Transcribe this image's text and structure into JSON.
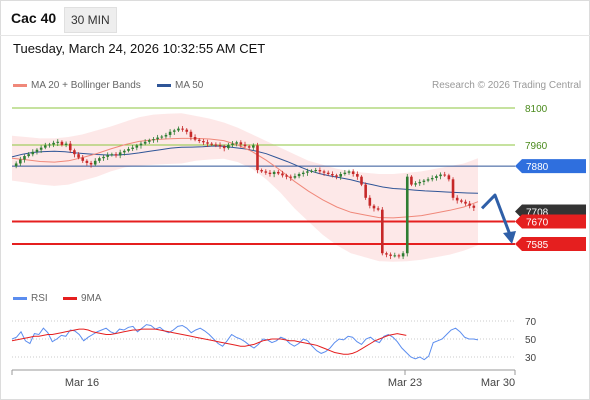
{
  "header": {
    "instrument": "Cac 40",
    "timeframe": "30 MIN",
    "datetime": "Tuesday, March 24, 2026 10:32:55 AM CET"
  },
  "legend": {
    "ma20_label": "MA 20 + Bollinger Bands",
    "ma50_label": "MA 50",
    "credit": "Research © 2026 Trading Central",
    "rsi_label": "RSI",
    "rsi_ma_label": "9MA"
  },
  "colors": {
    "ma20": "#f0887a",
    "ma50": "#2f5597",
    "bollinger_fill": "#fde4e4",
    "resistance_line": "#8dc63f",
    "pivot_line": "#2f5597",
    "support_line": "#e51f1f",
    "candle_up": "#2e7d32",
    "candle_down": "#c62828",
    "rsi_line": "#5b8def",
    "rsi_ma_line": "#e51f1f",
    "scenario_arrow": "#2f5fa8",
    "last_price_label": "#333333"
  },
  "chart_data": [
    {
      "type": "candlestick",
      "x_axis_labels": [
        "Mar 16",
        "Mar 23",
        "Mar 30"
      ],
      "ylim": [
        7520,
        8150
      ],
      "levels": [
        {
          "value": 8100,
          "label": "8100",
          "kind": "resistance"
        },
        {
          "value": 7960,
          "label": "7960",
          "kind": "resistance"
        },
        {
          "value": 7880,
          "label": "7880",
          "kind": "pivot"
        },
        {
          "value": 7708,
          "label": "7708",
          "kind": "last"
        },
        {
          "value": 7670,
          "label": "7670",
          "kind": "support"
        },
        {
          "value": 7585,
          "label": "7585",
          "kind": "support"
        }
      ],
      "price_path": [
        7880,
        7890,
        7905,
        7918,
        7925,
        7934,
        7942,
        7950,
        7958,
        7962,
        7968,
        7972,
        7960,
        7965,
        7940,
        7925,
        7912,
        7900,
        7892,
        7886,
        7900,
        7910,
        7915,
        7922,
        7925,
        7920,
        7932,
        7938,
        7945,
        7950,
        7958,
        7965,
        7972,
        7978,
        7982,
        7988,
        7992,
        7998,
        8010,
        8015,
        8022,
        8018,
        8010,
        7990,
        7980,
        7975,
        7970,
        7965,
        7962,
        7960,
        7955,
        7948,
        7960,
        7965,
        7970,
        7962,
        7955,
        7950,
        7958,
        7865,
        7860,
        7855,
        7850,
        7858,
        7852,
        7845,
        7840,
        7836,
        7842,
        7850,
        7855,
        7860,
        7862,
        7865,
        7860,
        7855,
        7850,
        7845,
        7840,
        7850,
        7855,
        7860,
        7850,
        7840,
        7810,
        7760,
        7730,
        7720,
        7715,
        7550,
        7545,
        7540,
        7542,
        7538,
        7550,
        7840,
        7810,
        7815,
        7820,
        7825,
        7830,
        7835,
        7842,
        7848,
        7845,
        7830,
        7760,
        7750,
        7745,
        7738,
        7730,
        7722
      ],
      "ma50": [
        7915,
        7925,
        7932,
        7935,
        7936,
        7934,
        7930,
        7927,
        7924,
        7922,
        7922,
        7925,
        7930,
        7936,
        7942,
        7948,
        7951,
        7952,
        7953,
        7956,
        7955,
        7950,
        7945,
        7937,
        7927,
        7912,
        7897,
        7880,
        7864,
        7852,
        7843,
        7836,
        7828,
        7818,
        7810,
        7801,
        7795,
        7793,
        7789,
        7786,
        7784,
        7782,
        7780,
        7778,
        7777
      ],
      "bollinger": {
        "upper": [
          7995,
          7990,
          7985,
          7985,
          7990,
          8000,
          8015,
          8030,
          8048,
          8065,
          8075,
          8078,
          8080,
          8070,
          8060,
          8045,
          8025,
          8000,
          7975,
          7950,
          7925,
          7900,
          7885,
          7870,
          7860,
          7855,
          7850,
          7850,
          7855,
          7860,
          7870,
          7880,
          7890,
          7910
        ],
        "lower": [
          7825,
          7818,
          7810,
          7805,
          7810,
          7825,
          7840,
          7860,
          7875,
          7882,
          7885,
          7888,
          7890,
          7900,
          7905,
          7908,
          7895,
          7870,
          7830,
          7780,
          7720,
          7670,
          7620,
          7580,
          7550,
          7535,
          7520,
          7518,
          7520,
          7525,
          7535,
          7545,
          7560,
          7580
        ]
      },
      "scenario_path": [
        7720,
        7770,
        7600
      ]
    },
    {
      "type": "line",
      "title": "RSI",
      "ylim": [
        20,
        80
      ],
      "y_ticks": [
        70,
        50,
        30
      ],
      "series": [
        {
          "name": "RSI",
          "values": [
            50,
            52,
            58,
            48,
            45,
            56,
            55,
            62,
            57,
            47,
            50,
            54,
            53,
            60,
            59,
            55,
            48,
            52,
            55,
            58,
            60,
            62,
            58,
            56,
            61,
            60,
            63,
            64,
            58,
            62,
            66,
            65,
            61,
            63,
            59,
            57,
            60,
            64,
            65,
            62,
            57,
            60,
            62,
            59,
            55,
            50,
            45,
            42,
            48,
            55,
            52,
            50,
            47,
            43,
            40,
            44,
            50,
            49,
            46,
            48,
            52,
            50,
            45,
            42,
            45,
            50,
            48,
            42,
            37,
            34,
            36,
            40,
            46,
            50,
            49,
            53,
            52,
            47,
            44,
            50,
            52,
            48,
            46,
            53,
            55,
            52,
            47,
            40,
            35,
            30,
            28,
            30,
            27,
            31,
            46,
            48,
            50,
            55,
            60,
            62,
            58,
            52,
            50,
            50,
            49
          ]
        },
        {
          "name": "9MA",
          "values": [
            48,
            49,
            50,
            51,
            52,
            53,
            53,
            54,
            55,
            55,
            56,
            57,
            58,
            59,
            60,
            61,
            61,
            60,
            58,
            57,
            56,
            55,
            55,
            56,
            57,
            58,
            59,
            60,
            60,
            61,
            61,
            61,
            61,
            60,
            59,
            58,
            57,
            56,
            55,
            54,
            53,
            52,
            51,
            50,
            49,
            48,
            47,
            46,
            45,
            44,
            43,
            42,
            42,
            43,
            44,
            46,
            48,
            49,
            50,
            50,
            50,
            49,
            48,
            48,
            47,
            46,
            45,
            44,
            43,
            41,
            39,
            37,
            35,
            34,
            33,
            33,
            34,
            36,
            39,
            42,
            45,
            48,
            50,
            52,
            54,
            55,
            56,
            55,
            54
          ]
        }
      ]
    }
  ]
}
